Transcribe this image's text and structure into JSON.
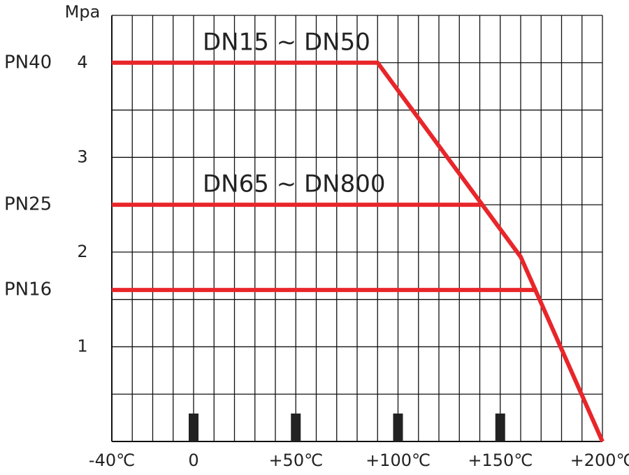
{
  "chart_data": {
    "type": "line",
    "ylabel": "Mpa",
    "xlim": [
      -40,
      200
    ],
    "ylim": [
      0,
      4.5
    ],
    "xticks": [
      {
        "value": -40,
        "label": "-40℃"
      },
      0,
      {
        "value": 50,
        "label": "+50℃"
      },
      {
        "value": 100,
        "label": "+100℃"
      },
      {
        "value": 150,
        "label": "+150℃"
      },
      {
        "value": 200,
        "label": "+200℃"
      }
    ],
    "yticks": [
      1,
      2,
      3,
      4
    ],
    "grid": true,
    "xgrid": 10,
    "ygrid": 0.5,
    "pressure_classes": [
      {
        "label": "PN40",
        "value": 4
      },
      {
        "label": "PN25",
        "value": 2.5
      },
      {
        "label": "PN16",
        "value": 1.6
      }
    ],
    "series": [
      {
        "name": "DN15 ~ DN50",
        "color": "#e8262a",
        "x": [
          -40,
          90,
          160,
          200
        ],
        "values": [
          4,
          4,
          1.95,
          0
        ]
      },
      {
        "name": "DN65 ~ DN800",
        "color": "#e8262a",
        "x": [
          -40,
          141
        ],
        "values": [
          2.5,
          2.5
        ]
      },
      {
        "color": "#e8262a",
        "x": [
          -40,
          168
        ],
        "values": [
          1.6,
          1.6
        ]
      }
    ]
  }
}
